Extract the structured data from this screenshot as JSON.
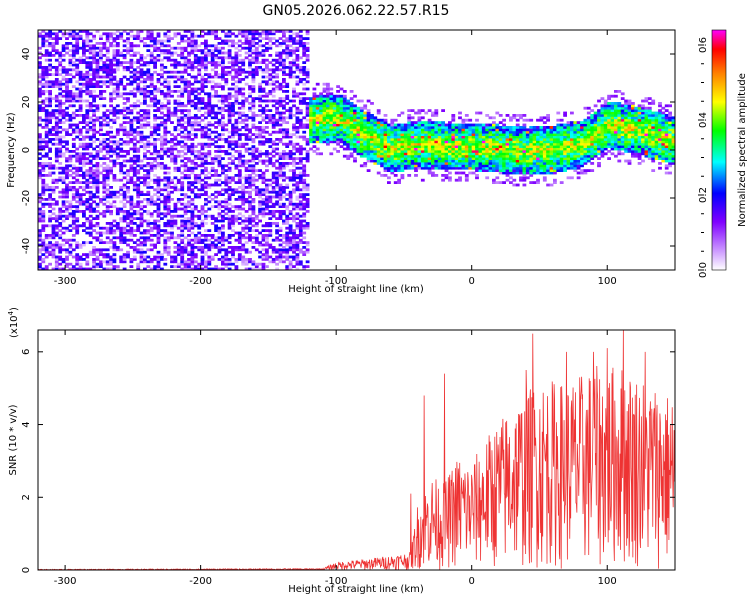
{
  "chart_data": [
    {
      "type": "heatmap",
      "title": "GN05.2026.062.22.57.R15",
      "xlabel": "Height of straight line (km)",
      "ylabel": "Frequency (Hz)",
      "xlim": [
        -320,
        150
      ],
      "ylim": [
        -50,
        50
      ],
      "xticks": [
        -300,
        -200,
        -100,
        0,
        100
      ],
      "yticks": [
        -40,
        -20,
        0,
        20,
        40
      ],
      "colorbar": {
        "label": "Normalized spectral amplitude",
        "range": [
          0,
          0.64
        ],
        "ticks": [
          0.0,
          0.2,
          0.4,
          0.6
        ],
        "colors": [
          "#ffffff",
          "#8000ff",
          "#0000ff",
          "#00ffff",
          "#00ff00",
          "#ffff00",
          "#ff8000",
          "#ff0000",
          "#ff00ff"
        ]
      },
      "regions": [
        {
          "name": "noise",
          "x_range": [
            -320,
            -122
          ],
          "freq_range": [
            -50,
            50
          ],
          "amplitude": [
            0.0,
            0.12
          ]
        },
        {
          "name": "echo",
          "x_range": [
            -122,
            150
          ],
          "center_freq_hz": [
            [
              -120,
              12
            ],
            [
              -100,
              13
            ],
            [
              -80,
              6
            ],
            [
              -60,
              0
            ],
            [
              -40,
              2
            ],
            [
              -20,
              1
            ],
            [
              0,
              1
            ],
            [
              20,
              0
            ],
            [
              40,
              -1
            ],
            [
              60,
              0
            ],
            [
              80,
              2
            ],
            [
              100,
              10
            ],
            [
              120,
              8
            ],
            [
              150,
              3
            ]
          ],
          "half_width_hz": 10,
          "amplitude": [
            0.05,
            0.6
          ]
        }
      ]
    },
    {
      "type": "line",
      "title": "",
      "xlabel": "Height of straight line (km)",
      "ylabel": "SNR (10 * v/v)",
      "yscale_label": "(x10",
      "yscale_exp": "4",
      "xlim": [
        -320,
        150
      ],
      "ylim": [
        0,
        6.6
      ],
      "xticks": [
        -300,
        -200,
        -100,
        0,
        100
      ],
      "yticks": [
        0,
        2,
        4,
        6
      ],
      "color": "#ee3333",
      "envelope": [
        [
          -320,
          0.02
        ],
        [
          -110,
          0.04
        ],
        [
          -100,
          0.22
        ],
        [
          -80,
          0.3
        ],
        [
          -60,
          0.4
        ],
        [
          -45,
          0.5
        ],
        [
          -40,
          1.8
        ],
        [
          -30,
          2.6
        ],
        [
          -20,
          2.4
        ],
        [
          -10,
          3.2
        ],
        [
          0,
          3.0
        ],
        [
          15,
          3.9
        ],
        [
          30,
          4.6
        ],
        [
          50,
          5.3
        ],
        [
          70,
          5.2
        ],
        [
          90,
          5.6
        ],
        [
          110,
          5.7
        ],
        [
          130,
          5.3
        ],
        [
          150,
          4.8
        ]
      ],
      "spikes": [
        [
          -45,
          2.1
        ],
        [
          -35,
          4.8
        ],
        [
          -20,
          5.4
        ],
        [
          40,
          5.5
        ],
        [
          45,
          6.5
        ],
        [
          70,
          6.0
        ],
        [
          90,
          6.0
        ],
        [
          100,
          6.1
        ],
        [
          112,
          6.6
        ],
        [
          128,
          6.0
        ]
      ]
    }
  ]
}
